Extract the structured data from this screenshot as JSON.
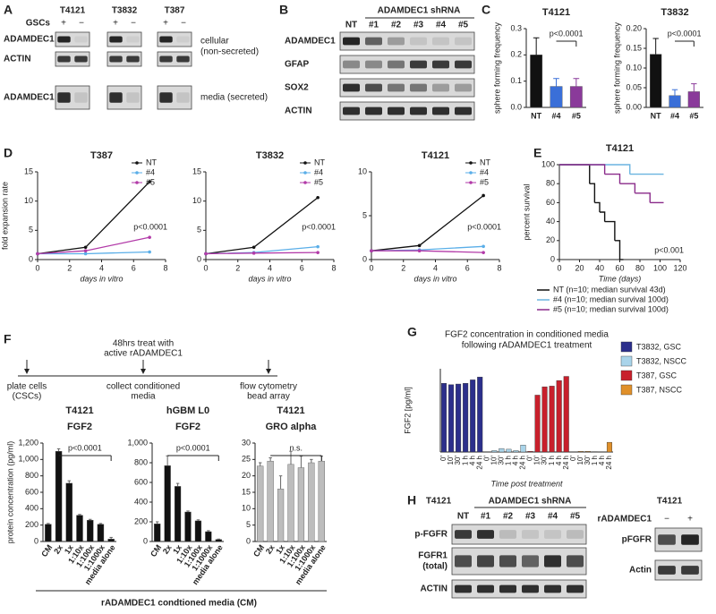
{
  "panel_labels": [
    "A",
    "B",
    "C",
    "D",
    "E",
    "F",
    "G",
    "H"
  ],
  "blot_a": {
    "cell_lines": [
      "T4121",
      "T3832",
      "T387"
    ],
    "group_label": "GSCs",
    "signs": [
      "+",
      "−"
    ],
    "rows": [
      "ADAMDEC1",
      "ACTIN",
      "ADAMDEC1"
    ],
    "notes": [
      "cellular",
      "(non-secreted)",
      "media (secreted)"
    ]
  },
  "blot_b": {
    "title": "ADAMDEC1 shRNA",
    "lanes": [
      "NT",
      "#1",
      "#2",
      "#3",
      "#4",
      "#5"
    ],
    "rows": [
      "ADAMDEC1",
      "GFAP",
      "SOX2",
      "ACTIN"
    ]
  },
  "timeline": {
    "top": [
      "48hrs treat with",
      "active rADAMDEC1"
    ],
    "steps": [
      [
        "plate cells",
        "(CSCs)"
      ],
      [
        "collect conditioned",
        "media"
      ],
      [
        "flow cytometry",
        "bead array"
      ]
    ]
  },
  "f_footer": "rADAMDEC1 condtioned media (CM)",
  "blot_h": {
    "cell_line": "T4121",
    "title": "ADAMDEC1 shRNA",
    "lanes": [
      "NT",
      "#1",
      "#2",
      "#3",
      "#4",
      "#5"
    ],
    "rows": [
      [
        "p-FGFR"
      ],
      [
        "FGFR1",
        "(total)"
      ],
      [
        "ACTIN"
      ]
    ]
  },
  "blot_h2": {
    "cell_line": "T4121",
    "treatment": "rADAMDEC1",
    "signs": [
      "−",
      "+"
    ],
    "rows": [
      "pFGFR",
      "Actin"
    ]
  },
  "chart_data": [
    {
      "type": "bar",
      "title": "T4121",
      "ylabel": "sphere forming frequency",
      "annotation": "p<0.0001",
      "categories": [
        "NT",
        "#4",
        "#5"
      ],
      "values": [
        0.2,
        0.08,
        0.08
      ],
      "errors": [
        0.065,
        0.03,
        0.03
      ],
      "colors": [
        "#111111",
        "#3a6fd8",
        "#8a3a9a"
      ],
      "ylim": [
        0,
        0.3
      ],
      "yticks": [
        {
          "value": 0,
          "label": "0.0"
        },
        0.1,
        0.2,
        0.3
      ]
    },
    {
      "type": "bar",
      "title": "T3832",
      "ylabel": "sphere forming frequency",
      "annotation": "p<0.0001",
      "categories": [
        "NT",
        "#4",
        "#5"
      ],
      "values": [
        0.135,
        0.03,
        0.04
      ],
      "errors": [
        0.04,
        0.015,
        0.02
      ],
      "colors": [
        "#111111",
        "#3a6fd8",
        "#8a3a9a"
      ],
      "ylim": [
        0,
        0.2
      ],
      "yticks": [
        {
          "value": 0,
          "label": "0.00"
        },
        {
          "value": 0.05,
          "label": "0.05"
        },
        {
          "value": 0.1,
          "label": "0.10"
        },
        {
          "value": 0.15,
          "label": "0.15"
        },
        {
          "value": 0.2,
          "label": "0.20"
        }
      ]
    },
    {
      "type": "line",
      "title": "T387",
      "ylabel": "fold expansion rate",
      "xlabel": "days in vitro",
      "annotation": "p<0.0001",
      "x": [
        0,
        3,
        7
      ],
      "xlim": [
        0,
        8
      ],
      "xticks": [
        0,
        2,
        4,
        6,
        8
      ],
      "ylim": [
        0,
        15
      ],
      "yticks": [
        0,
        5,
        10,
        15
      ],
      "series": [
        {
          "name": "NT",
          "color": "#111111",
          "values": [
            1,
            2.1,
            13.3
          ]
        },
        {
          "name": "#4",
          "color": "#5aaee8",
          "values": [
            1,
            1,
            1.3
          ]
        },
        {
          "name": "#5",
          "color": "#b23aa8",
          "values": [
            1,
            1.5,
            3.8
          ]
        }
      ]
    },
    {
      "type": "line",
      "title": "T3832",
      "xlabel": "days in vitro",
      "annotation": "p<0.0001",
      "x": [
        0,
        3,
        7
      ],
      "xlim": [
        0,
        8
      ],
      "xticks": [
        0,
        2,
        4,
        6,
        8
      ],
      "ylim": [
        0,
        15
      ],
      "yticks": [
        0,
        5,
        10,
        15
      ],
      "series": [
        {
          "name": "NT",
          "color": "#111111",
          "values": [
            1,
            2.1,
            10.6
          ]
        },
        {
          "name": "#4",
          "color": "#5aaee8",
          "values": [
            1,
            1.2,
            2.2
          ]
        },
        {
          "name": "#5",
          "color": "#b23aa8",
          "values": [
            1,
            1.1,
            1.2
          ]
        }
      ]
    },
    {
      "type": "line",
      "title": "T4121",
      "xlabel": "days in vitro",
      "annotation": "p<0.0001",
      "x": [
        0,
        3,
        7
      ],
      "xlim": [
        0,
        8
      ],
      "xticks": [
        0,
        2,
        4,
        6,
        8
      ],
      "ylim": [
        0,
        10
      ],
      "yticks": [
        0,
        5,
        10
      ],
      "series": [
        {
          "name": "NT",
          "color": "#111111",
          "values": [
            1,
            1.6,
            7.3
          ]
        },
        {
          "name": "#4",
          "color": "#5aaee8",
          "values": [
            1,
            1.1,
            1.5
          ]
        },
        {
          "name": "#5",
          "color": "#b23aa8",
          "values": [
            1,
            1,
            0.8
          ]
        }
      ]
    },
    {
      "type": "step",
      "title": "T4121",
      "ylabel": "percent survival",
      "xlabel": "Time (days)",
      "annotation": "p<0.001",
      "xlim": [
        0,
        120
      ],
      "xticks": [
        0,
        20,
        40,
        60,
        80,
        100,
        120
      ],
      "ylim": [
        0,
        100
      ],
      "yticks": [
        0,
        20,
        40,
        60,
        80,
        100
      ],
      "series": [
        {
          "name": "NT (n=10; median survival 43d)",
          "color": "#111111",
          "x": [
            0,
            30,
            35,
            40,
            45,
            55,
            60
          ],
          "values": [
            100,
            80,
            60,
            50,
            40,
            20,
            0
          ]
        },
        {
          "name": "#4 (n=10; median survival 100d)",
          "color": "#6ab4e0",
          "x": [
            0,
            70,
            100
          ],
          "values": [
            100,
            90,
            90
          ]
        },
        {
          "name": "#5 (n=10; median survival 100d)",
          "color": "#8a2b8a",
          "x": [
            0,
            45,
            60,
            75,
            90,
            100
          ],
          "values": [
            100,
            90,
            80,
            70,
            60,
            60
          ]
        }
      ]
    },
    {
      "type": "bar",
      "title": "T4121",
      "subtitle": "FGF2",
      "ylabel": "protein concentration (pg/ml)",
      "annotation": "p<0.0001",
      "categories": [
        "CM",
        "2x",
        "1x",
        "1:10x",
        "1:100x",
        "1:1000x",
        "media alone"
      ],
      "values": [
        210,
        1100,
        710,
        320,
        260,
        210,
        30
      ],
      "errors": [
        10,
        30,
        30,
        10,
        10,
        10,
        20
      ],
      "color": "#111111",
      "ylim": [
        0,
        1200
      ],
      "yticks": [
        0,
        200,
        400,
        600,
        800,
        {
          "value": 1000,
          "label": "1,000"
        },
        {
          "value": 1200,
          "label": "1,200"
        }
      ]
    },
    {
      "type": "bar",
      "title": "hGBM L0",
      "subtitle": "FGF2",
      "annotation": "p<0.0001",
      "categories": [
        "CM",
        "2x",
        "1x",
        "1:10x",
        "1:100x",
        "1:1000x",
        "media alone"
      ],
      "values": [
        180,
        770,
        560,
        300,
        210,
        100,
        20
      ],
      "errors": [
        20,
        100,
        30,
        10,
        10,
        10,
        5
      ],
      "color": "#111111",
      "ylim": [
        0,
        1000
      ],
      "yticks": [
        0,
        200,
        400,
        600,
        800,
        {
          "value": 1000,
          "label": "1,000"
        }
      ]
    },
    {
      "type": "bar",
      "title": "T4121",
      "subtitle": "GRO alpha",
      "annotation": "n.s.",
      "categories": [
        "CM",
        "2x",
        "1x",
        "1:10x",
        "1:100x",
        "1:1000x",
        "media alone"
      ],
      "values": [
        23,
        24.5,
        16,
        23.5,
        22.5,
        24,
        24.5
      ],
      "errors": [
        1,
        1,
        4,
        4,
        3.5,
        1,
        1.5
      ],
      "color": "#bdbdbd",
      "ylim": [
        0,
        30
      ],
      "yticks": [
        0,
        5,
        10,
        15,
        20,
        25,
        30
      ]
    },
    {
      "type": "bar",
      "title": "FGF2 concentration in conditioned media",
      "subtitle": "following rADAMDEC1 treatment",
      "ylabel": "FGF2 [pg/ml]",
      "xlabel": "Time post treatment",
      "categories": [
        "0'",
        "10'",
        "30'",
        "1 h",
        "4 h",
        "24 h"
      ],
      "ylim": [
        0,
        1200
      ],
      "series": [
        {
          "name": "T3832, GSC",
          "color": "#2c2f8c",
          "values": [
            990,
            970,
            980,
            990,
            1040,
            1080
          ]
        },
        {
          "name": "T3832, NSCC",
          "color": "#a9d4ea",
          "values": [
            0,
            20,
            50,
            40,
            20,
            100
          ]
        },
        {
          "name": "T387, GSC",
          "color": "#c8202c",
          "values": [
            10,
            820,
            940,
            950,
            1030,
            1090
          ]
        },
        {
          "name": "T387, NSCC",
          "color": "#e0902a",
          "values": [
            0,
            10,
            10,
            5,
            0,
            140
          ]
        }
      ]
    }
  ]
}
